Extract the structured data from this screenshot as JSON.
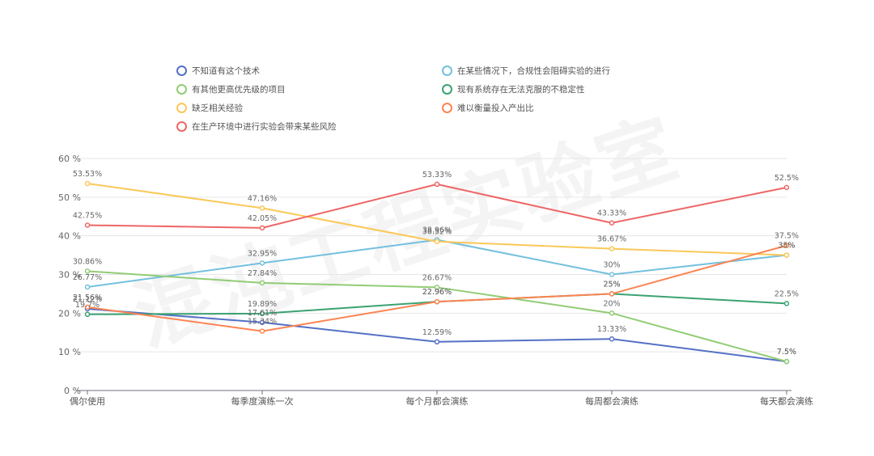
{
  "chart_data": {
    "type": "line",
    "title": "",
    "xlabel": "",
    "ylabel": "",
    "ylim": [
      0,
      60
    ],
    "yticks": [
      0,
      10,
      20,
      30,
      40,
      50,
      60
    ],
    "ytick_labels": [
      "0 %",
      "10 %",
      "20 %",
      "30 %",
      "40 %",
      "50 %",
      "60 %"
    ],
    "categories": [
      "偶尔使用",
      "每季度演练一次",
      "每个月都会演练",
      "每周都会演练",
      "每天都会演练"
    ],
    "series": [
      {
        "name": "不知道有这个技术",
        "color": "#5470c6",
        "values": [
          21.12,
          17.61,
          12.59,
          13.33,
          7.5
        ],
        "labels": [
          "21.12%",
          "17.61%",
          "12.59%",
          "13.33%",
          "7.5%"
        ]
      },
      {
        "name": "在某些情况下，合规性会阻碍实验的进行",
        "color": "#73c0de",
        "values": [
          26.77,
          32.95,
          38.96,
          30,
          35
        ],
        "labels": [
          "26.77%",
          "32.95%",
          "38.96%",
          "30%",
          "35%"
        ]
      },
      {
        "name": "有其他更高优先级的项目",
        "color": "#91cc75",
        "values": [
          30.86,
          27.84,
          26.67,
          20,
          7.5
        ],
        "labels": [
          "30.86%",
          "27.84%",
          "26.67%",
          "20%",
          "7.5%"
        ]
      },
      {
        "name": "现有系统存在无法克服的不稳定性",
        "color": "#3ba272",
        "values": [
          19.7,
          19.89,
          22.96,
          25,
          22.5
        ],
        "labels": [
          "19.7%",
          "19.89%",
          "22.96%",
          "25%",
          "22.5%"
        ]
      },
      {
        "name": "缺乏相关经验",
        "color": "#fac858",
        "values": [
          53.53,
          47.16,
          38.52,
          36.67,
          35
        ],
        "labels": [
          "53.53%",
          "47.16%",
          "38.52%",
          "36.67%",
          "35%"
        ]
      },
      {
        "name": "难以衡量投入产出比",
        "color": "#fc8452",
        "values": [
          21.56,
          15.34,
          22.96,
          25,
          37.5
        ],
        "labels": [
          "21.56%",
          "15.34%",
          "22.96%",
          "25%",
          "37.5%"
        ]
      },
      {
        "name": "在生产环境中进行实验会带来某些风险",
        "color": "#ee6666",
        "values": [
          42.75,
          42.05,
          53.33,
          43.33,
          52.5
        ],
        "labels": [
          "42.75%",
          "42.05%",
          "53.33%",
          "43.33%",
          "52.5%"
        ]
      }
    ],
    "grid": true,
    "legend_position": "top"
  },
  "watermark": {
    "text": "混沌工程实验室"
  }
}
